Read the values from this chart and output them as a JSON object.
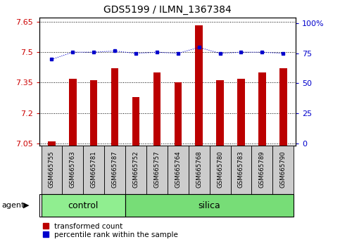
{
  "title": "GDS5199 / ILMN_1367384",
  "samples": [
    "GSM665755",
    "GSM665763",
    "GSM665781",
    "GSM665787",
    "GSM665752",
    "GSM665757",
    "GSM665764",
    "GSM665768",
    "GSM665780",
    "GSM665783",
    "GSM665789",
    "GSM665790"
  ],
  "red_values": [
    7.06,
    7.37,
    7.36,
    7.42,
    7.28,
    7.4,
    7.35,
    7.63,
    7.36,
    7.37,
    7.4,
    7.42
  ],
  "blue_values": [
    70,
    76,
    76,
    77,
    75,
    76,
    75,
    80,
    75,
    76,
    76,
    75
  ],
  "ylim_left": [
    7.04,
    7.67
  ],
  "ylim_right": [
    -2,
    105
  ],
  "yticks_left": [
    7.05,
    7.2,
    7.35,
    7.5,
    7.65
  ],
  "ytick_labels_left": [
    "7.05",
    "7.2",
    "7.35",
    "7.5",
    "7.65"
  ],
  "yticks_right": [
    0,
    25,
    50,
    75,
    100
  ],
  "ytick_labels_right": [
    "0",
    "25",
    "50",
    "75",
    "100%"
  ],
  "control_count": 4,
  "silica_count": 8,
  "control_label": "control",
  "silica_label": "silica",
  "agent_label": "agent",
  "legend_red": "transformed count",
  "legend_blue": "percentile rank within the sample",
  "bar_color": "#bb0000",
  "dot_color": "#0000cc",
  "control_bg": "#90ee90",
  "silica_bg": "#77dd77",
  "tick_label_bg": "#cccccc",
  "grid_color": "#000000",
  "base_value": 7.04,
  "bar_width": 0.35
}
